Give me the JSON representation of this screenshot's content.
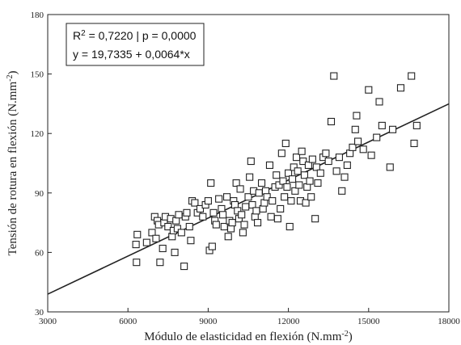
{
  "chart_data": {
    "type": "scatter",
    "title": "",
    "xlabel": {
      "text": "Módulo de elasticidad en flexión (N.mm",
      "superscript": "-2",
      "suffix": ")"
    },
    "ylabel": {
      "text": "Tensión de rotura en flexión (N.mm",
      "superscript": "-2",
      "suffix": ")"
    },
    "xlim": [
      3000,
      18000
    ],
    "ylim": [
      30,
      180
    ],
    "xticks": [
      3000,
      6000,
      9000,
      12000,
      15000,
      18000
    ],
    "yticks": [
      30,
      60,
      90,
      120,
      150,
      180
    ],
    "grid": false,
    "legend_position": "top-left",
    "annotation": {
      "r2_label": "R",
      "r2_sup": "2",
      "r2_rest": " = 0,7220 | p = 0,0000",
      "equation": "y = 19,7335 + 0,0064*x"
    },
    "regression": {
      "intercept": 19.7335,
      "slope": 0.0064,
      "x_range": [
        3000,
        18000
      ]
    },
    "marker": "open-square",
    "colors": {
      "marker": "#222222",
      "line": "#222222",
      "axis": "#222222"
    },
    "points": [
      [
        6350,
        69
      ],
      [
        6300,
        64
      ],
      [
        6320,
        55
      ],
      [
        6700,
        65
      ],
      [
        6900,
        70
      ],
      [
        7000,
        78
      ],
      [
        7100,
        76
      ],
      [
        7150,
        74
      ],
      [
        7050,
        67
      ],
      [
        7200,
        55
      ],
      [
        7300,
        62
      ],
      [
        7350,
        75
      ],
      [
        7400,
        78
      ],
      [
        7500,
        73
      ],
      [
        7600,
        77
      ],
      [
        7650,
        68
      ],
      [
        7700,
        71
      ],
      [
        7750,
        60
      ],
      [
        7800,
        76
      ],
      [
        7850,
        72
      ],
      [
        7900,
        79
      ],
      [
        8000,
        70
      ],
      [
        8100,
        53
      ],
      [
        8150,
        78
      ],
      [
        8200,
        80
      ],
      [
        8300,
        73
      ],
      [
        8350,
        66
      ],
      [
        8400,
        86
      ],
      [
        8500,
        85
      ],
      [
        8600,
        80
      ],
      [
        8700,
        82
      ],
      [
        8800,
        78
      ],
      [
        8900,
        84
      ],
      [
        9000,
        86
      ],
      [
        9050,
        61
      ],
      [
        9100,
        95
      ],
      [
        9150,
        63
      ],
      [
        9200,
        80
      ],
      [
        9250,
        76
      ],
      [
        9300,
        74
      ],
      [
        9400,
        87
      ],
      [
        9500,
        82
      ],
      [
        9550,
        79
      ],
      [
        9600,
        73
      ],
      [
        9700,
        88
      ],
      [
        9750,
        68
      ],
      [
        9800,
        76
      ],
      [
        9850,
        72
      ],
      [
        9900,
        75
      ],
      [
        9950,
        86
      ],
      [
        10000,
        84
      ],
      [
        10050,
        95
      ],
      [
        10100,
        81
      ],
      [
        10150,
        77
      ],
      [
        10200,
        92
      ],
      [
        10250,
        79
      ],
      [
        10300,
        70
      ],
      [
        10350,
        74
      ],
      [
        10400,
        83
      ],
      [
        10500,
        88
      ],
      [
        10550,
        98
      ],
      [
        10600,
        106
      ],
      [
        10650,
        84
      ],
      [
        10700,
        91
      ],
      [
        10750,
        78
      ],
      [
        10800,
        81
      ],
      [
        10850,
        75
      ],
      [
        10900,
        90
      ],
      [
        11000,
        95
      ],
      [
        11050,
        82
      ],
      [
        11100,
        85
      ],
      [
        11150,
        91
      ],
      [
        11200,
        88
      ],
      [
        11300,
        104
      ],
      [
        11350,
        78
      ],
      [
        11400,
        86
      ],
      [
        11500,
        93
      ],
      [
        11550,
        99
      ],
      [
        11600,
        77
      ],
      [
        11650,
        94
      ],
      [
        11700,
        82
      ],
      [
        11750,
        110
      ],
      [
        11800,
        96
      ],
      [
        11850,
        88
      ],
      [
        11900,
        115
      ],
      [
        11950,
        93
      ],
      [
        12000,
        100
      ],
      [
        12050,
        73
      ],
      [
        12100,
        86
      ],
      [
        12150,
        97
      ],
      [
        12200,
        103
      ],
      [
        12250,
        91
      ],
      [
        12300,
        108
      ],
      [
        12350,
        101
      ],
      [
        12400,
        94
      ],
      [
        12450,
        86
      ],
      [
        12500,
        111
      ],
      [
        12550,
        106
      ],
      [
        12600,
        99
      ],
      [
        12650,
        85
      ],
      [
        12700,
        93
      ],
      [
        12750,
        104
      ],
      [
        12800,
        96
      ],
      [
        12850,
        88
      ],
      [
        12900,
        107
      ],
      [
        13000,
        77
      ],
      [
        13050,
        103
      ],
      [
        13100,
        95
      ],
      [
        13200,
        100
      ],
      [
        13300,
        108
      ],
      [
        13400,
        110
      ],
      [
        13500,
        106
      ],
      [
        13600,
        126
      ],
      [
        13700,
        149
      ],
      [
        13800,
        101
      ],
      [
        13900,
        108
      ],
      [
        14000,
        91
      ],
      [
        14100,
        98
      ],
      [
        14200,
        104
      ],
      [
        14300,
        110
      ],
      [
        14400,
        113
      ],
      [
        14500,
        122
      ],
      [
        14550,
        129
      ],
      [
        14600,
        116
      ],
      [
        14800,
        112
      ],
      [
        15000,
        142
      ],
      [
        15100,
        109
      ],
      [
        15300,
        118
      ],
      [
        15400,
        136
      ],
      [
        15500,
        124
      ],
      [
        15800,
        103
      ],
      [
        15900,
        122
      ],
      [
        16200,
        143
      ],
      [
        16600,
        149
      ],
      [
        16700,
        115
      ],
      [
        16800,
        124
      ]
    ]
  }
}
